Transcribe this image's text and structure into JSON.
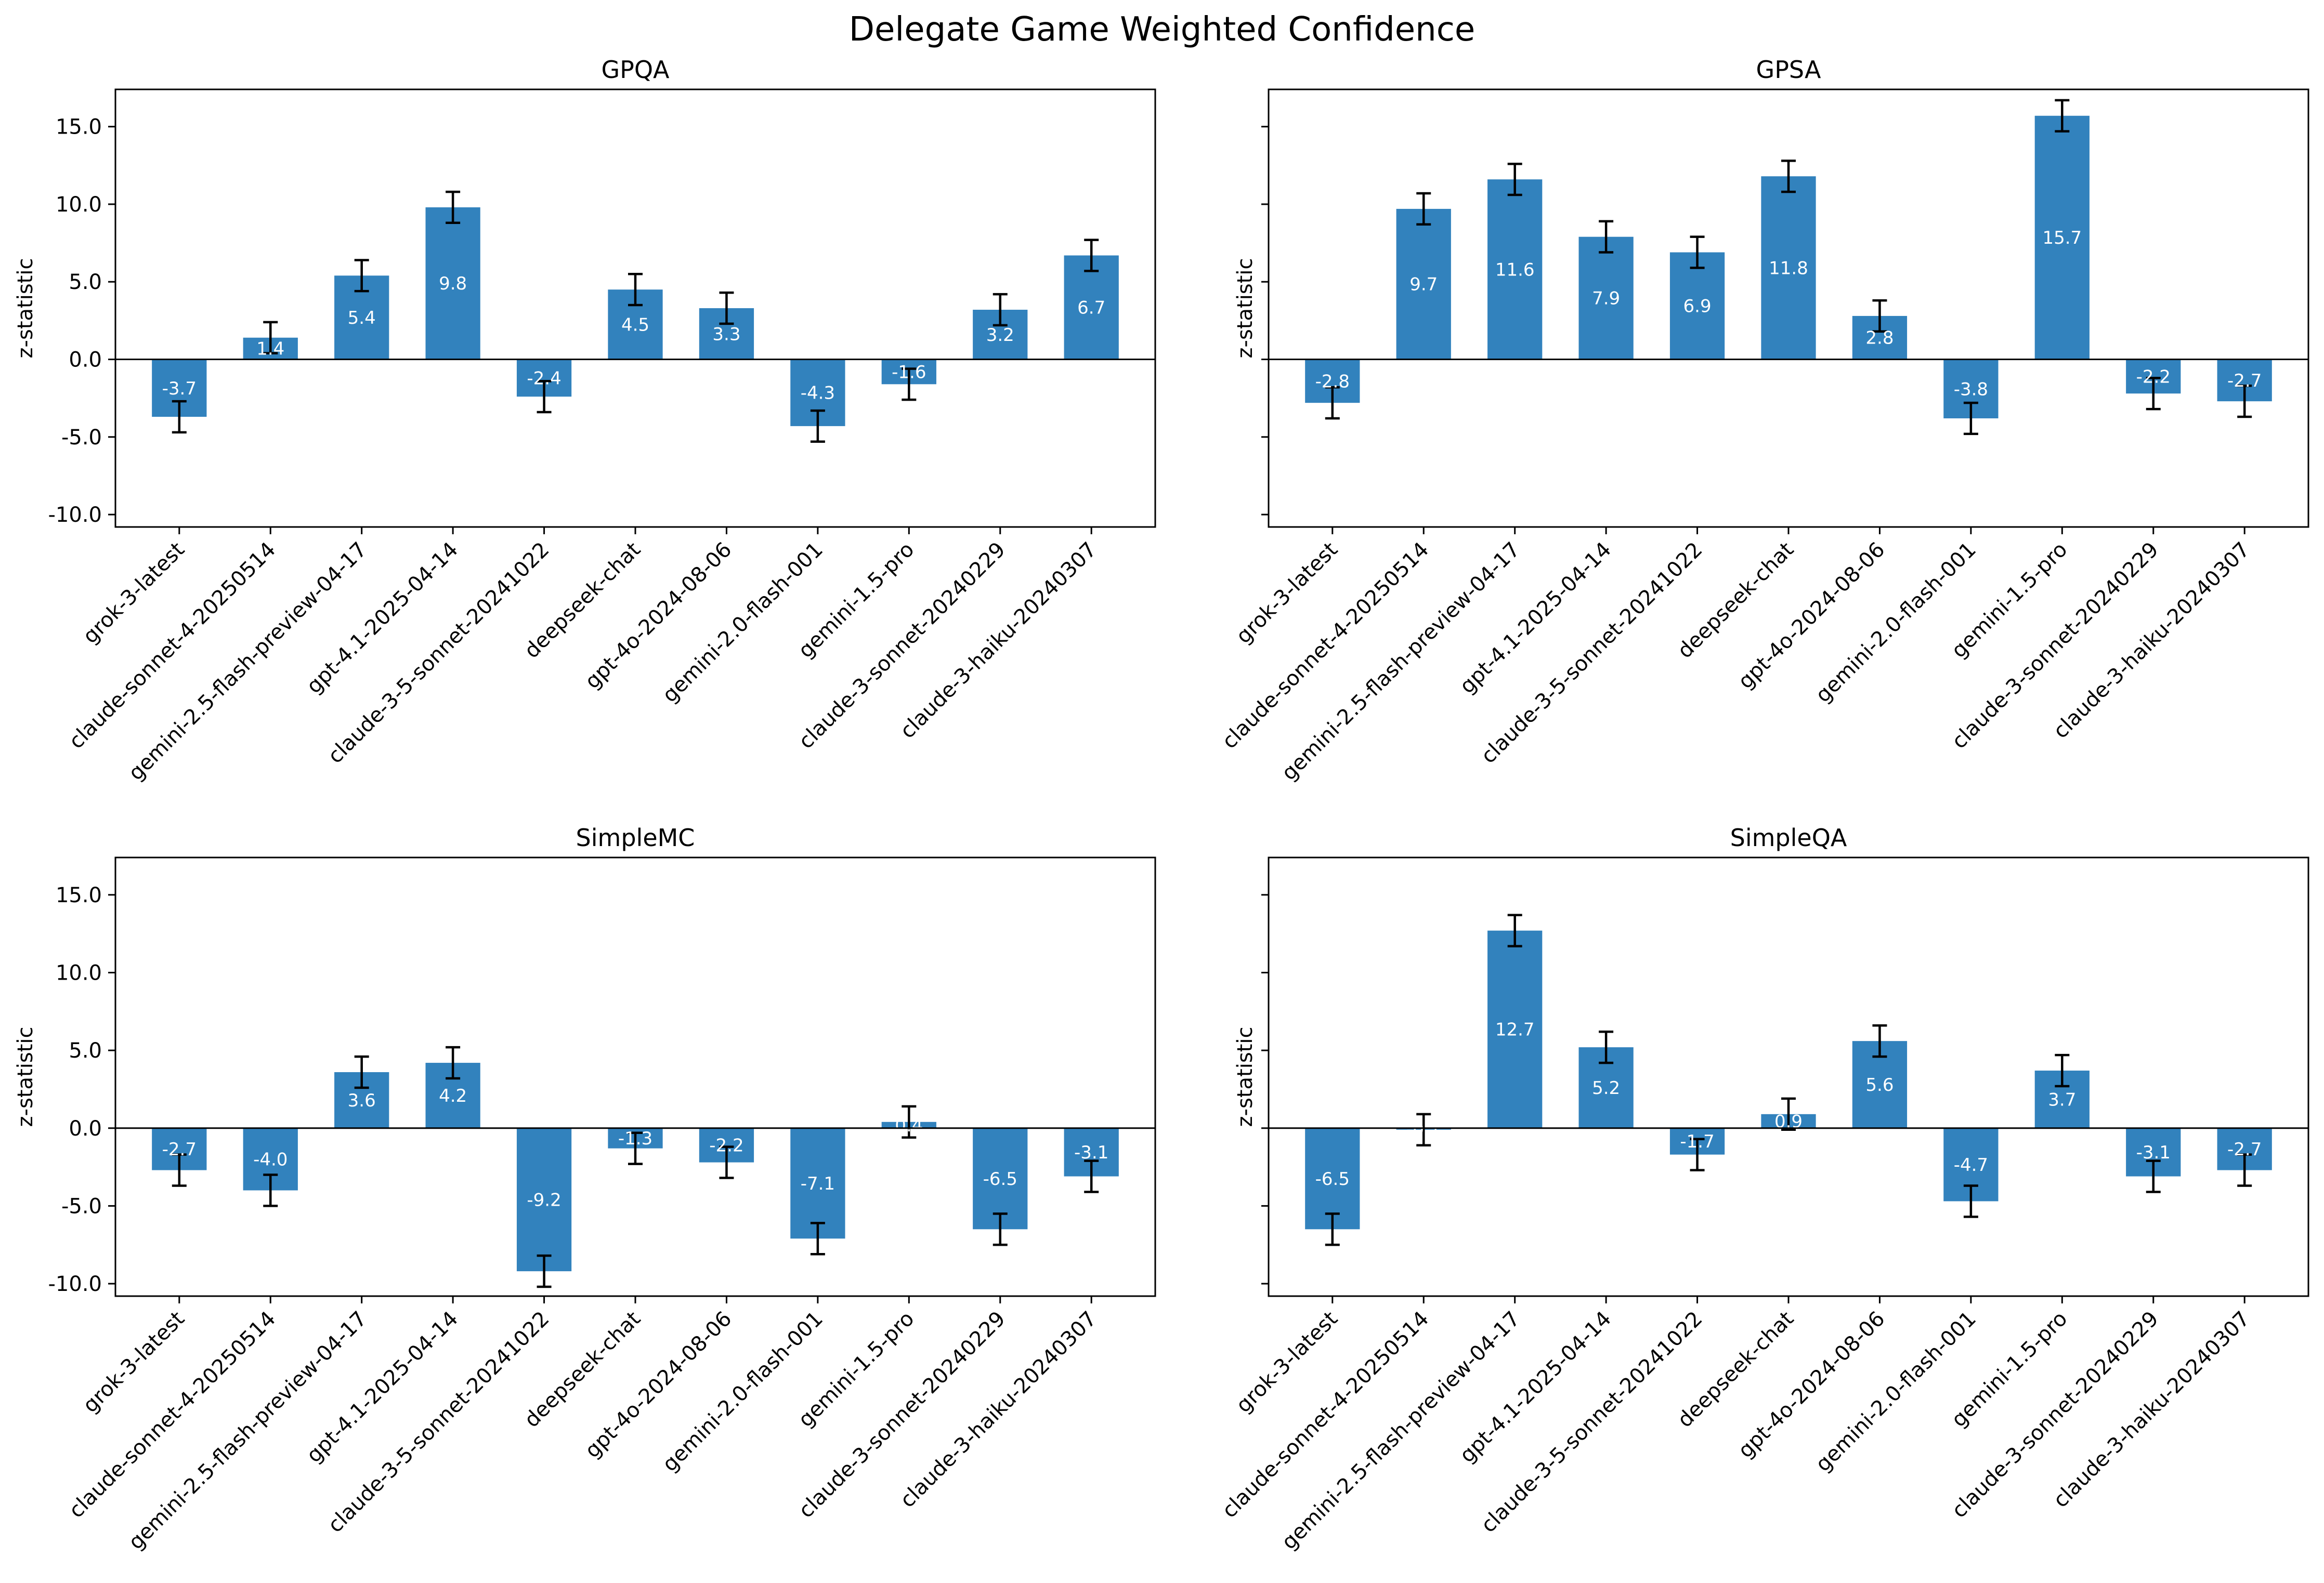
{
  "figure_title": "Delegate Game Weighted Confidence",
  "colors": {
    "bar": "#3282bd",
    "axis": "#000000",
    "text": "#000000",
    "label_text": "#ffffff"
  },
  "chart_data": [
    {
      "type": "bar",
      "title": "GPQA",
      "ylabel": "z-statistic",
      "xlabel": "",
      "ylim": [
        -10.8,
        17.4
      ],
      "yticks": [
        -10.0,
        -5.0,
        0.0,
        5.0,
        10.0,
        15.0
      ],
      "ytick_labels": [
        "-10.0",
        "-5.0",
        "0.0",
        "5.0",
        "10.0",
        "15.0"
      ],
      "show_ytick_labels": true,
      "grid": false,
      "categories": [
        "grok-3-latest",
        "claude-sonnet-4-20250514",
        "gemini-2.5-flash-preview-04-17",
        "gpt-4.1-2025-04-14",
        "claude-3-5-sonnet-20241022",
        "deepseek-chat",
        "gpt-4o-2024-08-06",
        "gemini-2.0-flash-001",
        "gemini-1.5-pro",
        "claude-3-sonnet-20240229",
        "claude-3-haiku-20240307"
      ],
      "values": [
        -3.7,
        1.4,
        5.4,
        9.8,
        -2.4,
        4.5,
        3.3,
        -4.3,
        -1.6,
        3.2,
        6.7
      ],
      "value_labels": [
        "-3.7",
        "1.4",
        "5.4",
        "9.8",
        "-2.4",
        "4.5",
        "3.3",
        "-4.3",
        "-1.6",
        "3.2",
        "6.7"
      ],
      "error": 1.0
    },
    {
      "type": "bar",
      "title": "GPSA",
      "ylabel": "z-statistic",
      "xlabel": "",
      "ylim": [
        -10.8,
        17.4
      ],
      "yticks": [
        -10.0,
        -5.0,
        0.0,
        5.0,
        10.0,
        15.0
      ],
      "ytick_labels": [
        "-10.0",
        "-5.0",
        "0.0",
        "5.0",
        "10.0",
        "15.0"
      ],
      "show_ytick_labels": false,
      "grid": false,
      "categories": [
        "grok-3-latest",
        "claude-sonnet-4-20250514",
        "gemini-2.5-flash-preview-04-17",
        "gpt-4.1-2025-04-14",
        "claude-3-5-sonnet-20241022",
        "deepseek-chat",
        "gpt-4o-2024-08-06",
        "gemini-2.0-flash-001",
        "gemini-1.5-pro",
        "claude-3-sonnet-20240229",
        "claude-3-haiku-20240307"
      ],
      "values": [
        -2.8,
        9.7,
        11.6,
        7.9,
        6.9,
        11.8,
        2.8,
        -3.8,
        15.7,
        -2.2,
        -2.7
      ],
      "value_labels": [
        "-2.8",
        "9.7",
        "11.6",
        "7.9",
        "6.9",
        "11.8",
        "2.8",
        "-3.8",
        "15.7",
        "-2.2",
        "-2.7"
      ],
      "error": 1.0
    },
    {
      "type": "bar",
      "title": "SimpleMC",
      "ylabel": "z-statistic",
      "xlabel": "",
      "ylim": [
        -10.8,
        17.4
      ],
      "yticks": [
        -10.0,
        -5.0,
        0.0,
        5.0,
        10.0,
        15.0
      ],
      "ytick_labels": [
        "-10.0",
        "-5.0",
        "0.0",
        "5.0",
        "10.0",
        "15.0"
      ],
      "show_ytick_labels": true,
      "grid": false,
      "categories": [
        "grok-3-latest",
        "claude-sonnet-4-20250514",
        "gemini-2.5-flash-preview-04-17",
        "gpt-4.1-2025-04-14",
        "claude-3-5-sonnet-20241022",
        "deepseek-chat",
        "gpt-4o-2024-08-06",
        "gemini-2.0-flash-001",
        "gemini-1.5-pro",
        "claude-3-sonnet-20240229",
        "claude-3-haiku-20240307"
      ],
      "values": [
        -2.7,
        -4.0,
        3.6,
        4.2,
        -9.2,
        -1.3,
        -2.2,
        -7.1,
        0.4,
        -6.5,
        -3.1
      ],
      "value_labels": [
        "-2.7",
        "-4.0",
        "3.6",
        "4.2",
        "-9.2",
        "-1.3",
        "-2.2",
        "-7.1",
        "0.4",
        "-6.5",
        "-3.1"
      ],
      "error": 1.0
    },
    {
      "type": "bar",
      "title": "SimpleQA",
      "ylabel": "z-statistic",
      "xlabel": "",
      "ylim": [
        -10.8,
        17.4
      ],
      "yticks": [
        -10.0,
        -5.0,
        0.0,
        5.0,
        10.0,
        15.0
      ],
      "ytick_labels": [
        "-10.0",
        "-5.0",
        "0.0",
        "5.0",
        "10.0",
        "15.0"
      ],
      "show_ytick_labels": false,
      "grid": false,
      "categories": [
        "grok-3-latest",
        "claude-sonnet-4-20250514",
        "gemini-2.5-flash-preview-04-17",
        "gpt-4.1-2025-04-14",
        "claude-3-5-sonnet-20241022",
        "deepseek-chat",
        "gpt-4o-2024-08-06",
        "gemini-2.0-flash-001",
        "gemini-1.5-pro",
        "claude-3-sonnet-20240229",
        "claude-3-haiku-20240307"
      ],
      "values": [
        -6.5,
        -0.1,
        12.7,
        5.2,
        -1.7,
        0.9,
        5.6,
        -4.7,
        3.7,
        -3.1,
        -2.7
      ],
      "value_labels": [
        "-6.5",
        "-0.1",
        "12.7",
        "5.2",
        "-1.7",
        "0.9",
        "5.6",
        "-4.7",
        "3.7",
        "-3.1",
        "-2.7"
      ],
      "error": 1.0
    }
  ]
}
